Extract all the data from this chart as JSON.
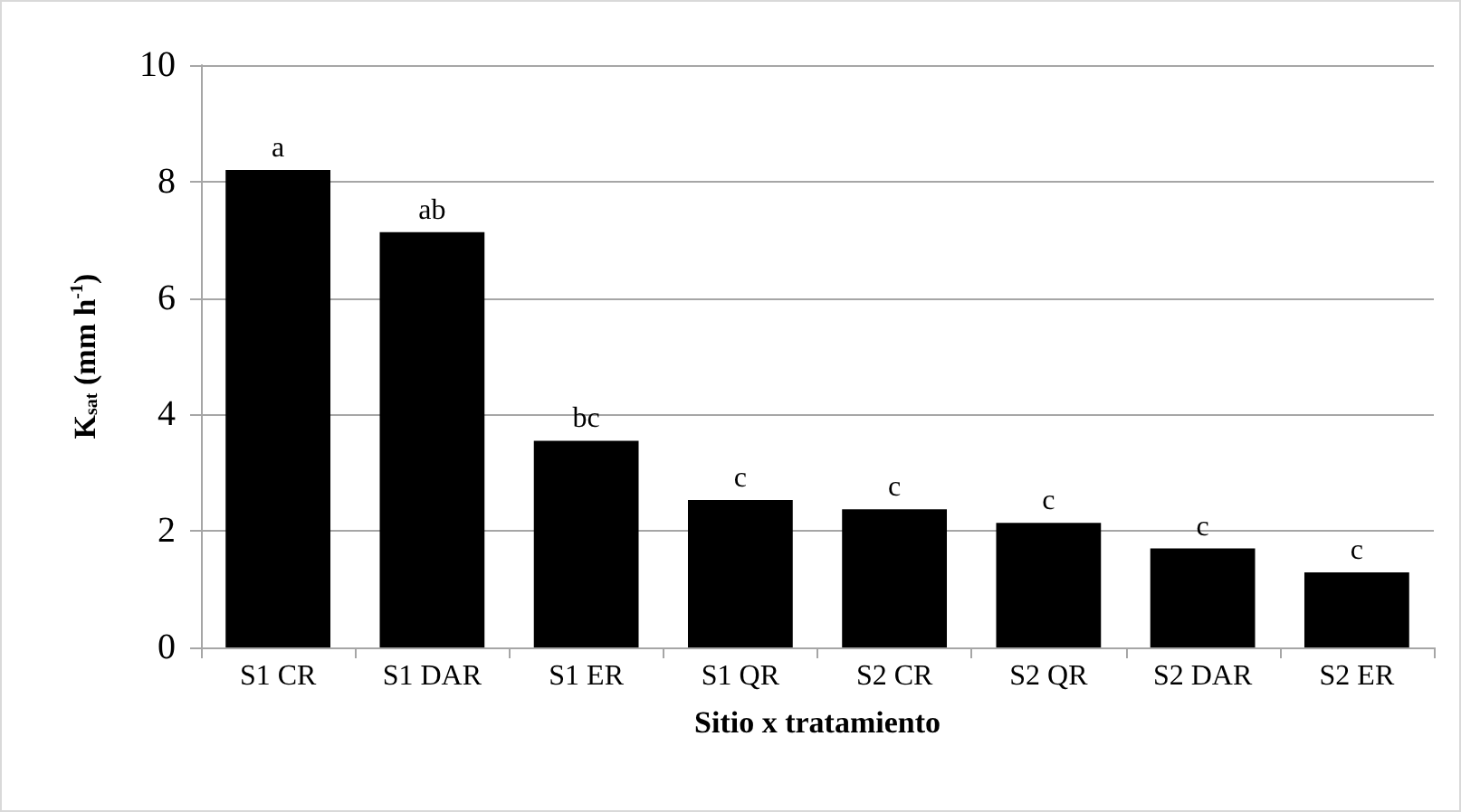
{
  "chart_data": {
    "type": "bar",
    "xlabel": "Sitio x tratamiento",
    "ylabel": "K$_{sat}$ (mm h$^{-1}$)",
    "categories": [
      "S1 CR",
      "S1 DAR",
      "S1 ER",
      "S1 QR",
      "S2 CR",
      "S2 QR",
      "S2 DAR",
      "S2 ER"
    ],
    "values": [
      8.2,
      7.13,
      3.55,
      2.53,
      2.37,
      2.14,
      1.7,
      1.29
    ],
    "color": "#000000",
    "ylim": [
      0,
      10
    ],
    "yticks": [
      0,
      2,
      4,
      6,
      8,
      10
    ],
    "grid": "y",
    "annotations": [
      {
        "text": "a",
        "x": "S1 CR",
        "y": 8.2
      },
      {
        "text": "ab",
        "x": "S1 DAR",
        "y": 7.13
      },
      {
        "text": "bc",
        "x": "S1 ER",
        "y": 3.55
      },
      {
        "text": "c",
        "x": "S1 QR",
        "y": 2.53
      },
      {
        "text": "c",
        "x": "S2 CR",
        "y": 2.37
      },
      {
        "text": "c",
        "x": "S2 QR",
        "y": 2.14
      },
      {
        "text": "c",
        "x": "S2 DAR",
        "y": 1.7
      },
      {
        "text": "c",
        "x": "S2 ER",
        "y": 1.29
      }
    ]
  }
}
